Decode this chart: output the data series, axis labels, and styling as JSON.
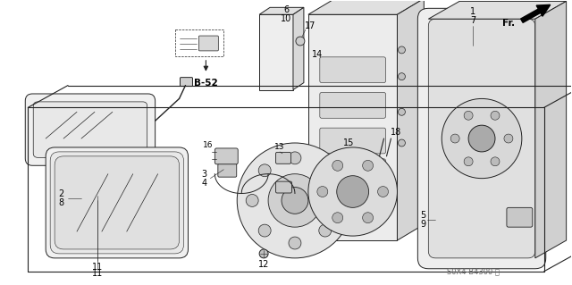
{
  "background_color": "#ffffff",
  "line_color": "#222222",
  "text_color": "#000000",
  "figsize": [
    6.4,
    3.19
  ],
  "dpi": 100,
  "watermark": "S0X4-B4300 ⓓ"
}
